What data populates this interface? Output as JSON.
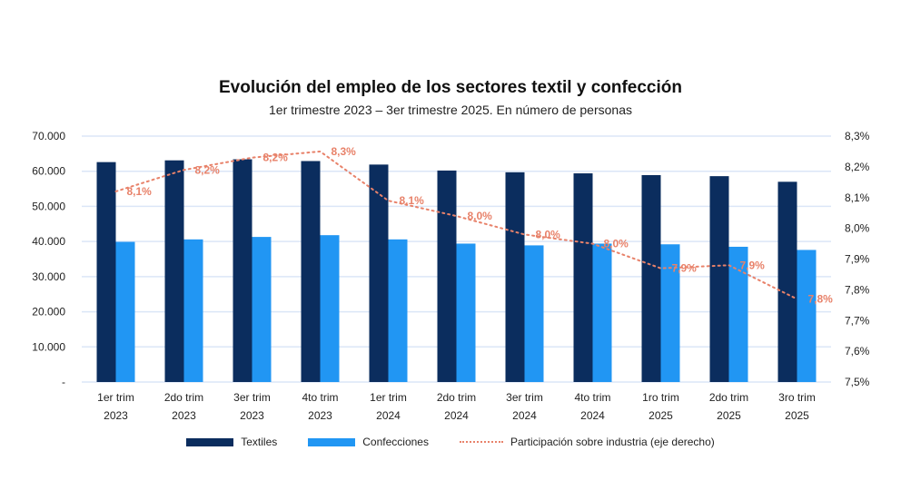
{
  "chart_data": {
    "type": "bar",
    "title": "Evolución del empleo de los sectores textil y confección",
    "subtitle": "1er trimestre 2023 – 3er trimestre 2025. En número de personas",
    "categories": [
      [
        "1er trim",
        "2023"
      ],
      [
        "2do trim",
        "2023"
      ],
      [
        "3er trim",
        "2023"
      ],
      [
        "4to trim",
        "2023"
      ],
      [
        "1er trim",
        "2024"
      ],
      [
        "2do trim",
        "2024"
      ],
      [
        "3er trim",
        "2024"
      ],
      [
        "4to trim",
        "2024"
      ],
      [
        "1ro trim",
        "2025"
      ],
      [
        "2do trim",
        "2025"
      ],
      [
        "3ro trim",
        "2025"
      ]
    ],
    "ylim": [
      0,
      70000
    ],
    "yticks": [
      "-",
      "10.000",
      "20.000",
      "30.000",
      "40.000",
      "50.000",
      "60.000",
      "70.000"
    ],
    "y2lim": [
      7.5,
      8.3
    ],
    "y2ticks": [
      "7,5%",
      "7,6%",
      "7,7%",
      "7,8%",
      "7,9%",
      "8,0%",
      "8,1%",
      "8,2%",
      "8,3%"
    ],
    "grid": true,
    "legend_position": "bottom",
    "series": [
      {
        "name": "Textiles",
        "type": "bar",
        "color": "#0b2d5e",
        "values": [
          62600,
          63100,
          63400,
          62900,
          61900,
          60200,
          59700,
          59400,
          58900,
          58600,
          57000
        ]
      },
      {
        "name": "Confecciones",
        "type": "bar",
        "color": "#2196f3",
        "values": [
          39900,
          40600,
          41300,
          41800,
          40600,
          39400,
          38900,
          39400,
          39200,
          38500,
          37600
        ]
      },
      {
        "name": "Participación sobre industria (eje derecho)",
        "type": "line",
        "axis": "right",
        "style": "dotted",
        "color": "#e8826a",
        "values": [
          8.12,
          8.19,
          8.23,
          8.25,
          8.09,
          8.04,
          7.98,
          7.95,
          7.87,
          7.88,
          7.77
        ],
        "labels": [
          "8,1%",
          "8,2%",
          "8,2%",
          "8,3%",
          "8,1%",
          "8,0%",
          "8,0%",
          "8,0%",
          "7,9%",
          "7,9%",
          "7,8%"
        ]
      }
    ]
  }
}
